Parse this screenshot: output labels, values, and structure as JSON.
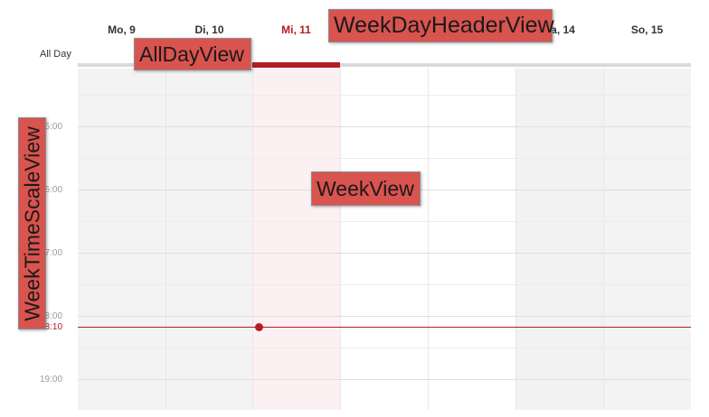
{
  "header": {
    "days": [
      {
        "label": "Mo, 9",
        "today": false,
        "weekend": false
      },
      {
        "label": "Di, 10",
        "today": false,
        "weekend": false
      },
      {
        "label": "Mi, 11",
        "today": true,
        "weekend": false
      },
      {
        "label": "",
        "today": false,
        "weekend": false
      },
      {
        "label": "",
        "today": false,
        "weekend": false
      },
      {
        "label": "Sa, 14",
        "today": false,
        "weekend": true
      },
      {
        "label": "So, 15",
        "today": false,
        "weekend": false
      }
    ]
  },
  "all_day": {
    "label": "All Day"
  },
  "time_scale": {
    "hours": [
      "15:00",
      "16:00",
      "17:00",
      "18:00",
      "19:00"
    ],
    "current_time": "18:10"
  },
  "annotations": {
    "week_day_header_view": "WeekDayHeaderView",
    "all_day_view": "AllDayView",
    "week_view": "WeekView",
    "week_time_scale_view": "WeekTimeScaleView"
  },
  "colors": {
    "accent": "#b21e23",
    "today_column": "#fdf0f2",
    "weekend_column": "#f2f2f2",
    "annotation": "#d9534f"
  }
}
